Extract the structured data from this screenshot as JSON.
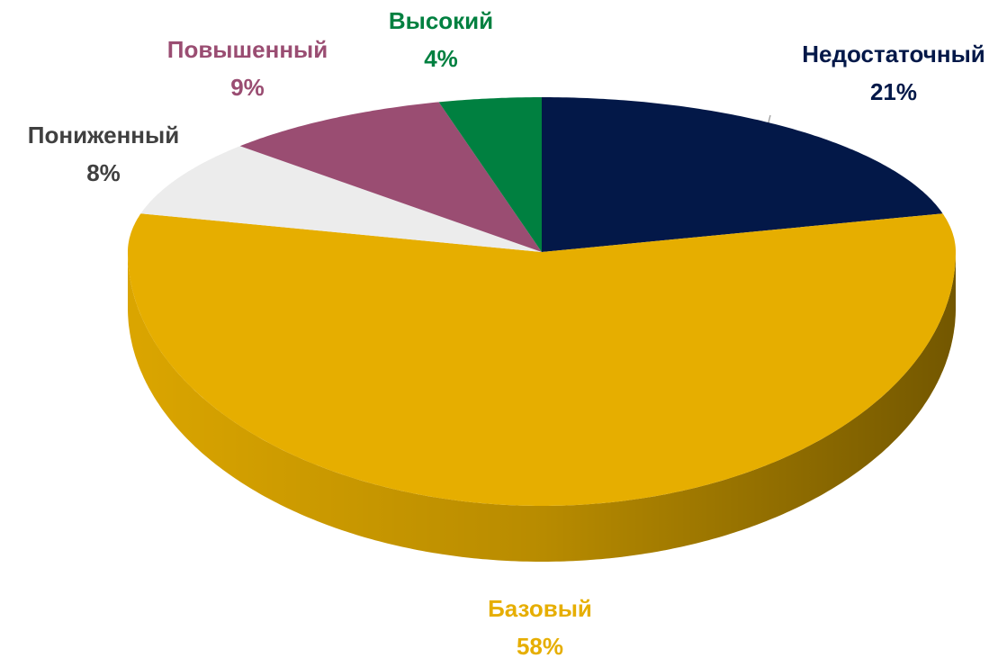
{
  "chart_data": {
    "type": "pie",
    "categories": [
      "Недостаточный",
      "Базовый",
      "Пониженный",
      "Повышенный",
      "Высокий"
    ],
    "values": [
      21,
      58,
      8,
      9,
      4
    ],
    "value_labels": [
      "21%",
      "58%",
      "8%",
      "9%",
      "4%"
    ],
    "colors": [
      "#031848",
      "#e6ae00",
      "#ececec",
      "#9a4d72",
      "#008040"
    ],
    "label_colors": [
      "#031848",
      "#e6ae00",
      "#404040",
      "#9a4d72",
      "#008040"
    ]
  }
}
